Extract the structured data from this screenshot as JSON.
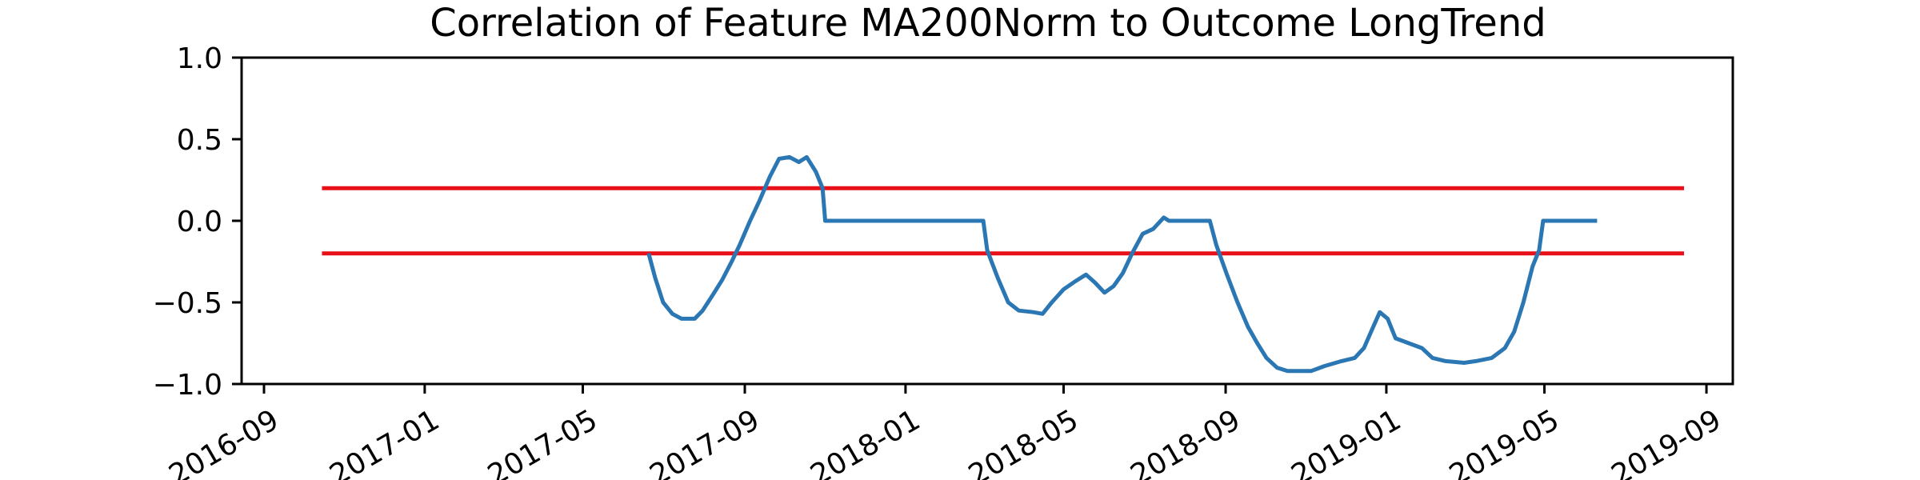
{
  "chart_data": {
    "type": "line",
    "title": "Correlation of Feature MA200Norm to Outcome LongTrend",
    "xlabel": "",
    "ylabel": "",
    "ylim": [
      -1.0,
      1.0
    ],
    "xlim": [
      "2016-08-15",
      "2019-09-21"
    ],
    "grid": false,
    "yticks": [
      {
        "value": 1.0,
        "label": "1.0"
      },
      {
        "value": 0.5,
        "label": "0.5"
      },
      {
        "value": 0.0,
        "label": "0.0"
      },
      {
        "value": -0.5,
        "label": "−0.5"
      },
      {
        "value": -1.0,
        "label": "−1.0"
      }
    ],
    "xticks": [
      {
        "value": "2016-09-01",
        "label": "2016-09"
      },
      {
        "value": "2017-01-01",
        "label": "2017-01"
      },
      {
        "value": "2017-05-01",
        "label": "2017-05"
      },
      {
        "value": "2017-09-01",
        "label": "2017-09"
      },
      {
        "value": "2018-01-01",
        "label": "2018-01"
      },
      {
        "value": "2018-05-01",
        "label": "2018-05"
      },
      {
        "value": "2018-09-01",
        "label": "2018-09"
      },
      {
        "value": "2019-01-01",
        "label": "2019-01"
      },
      {
        "value": "2019-05-01",
        "label": "2019-05"
      },
      {
        "value": "2019-09-01",
        "label": "2019-09"
      }
    ],
    "threshold_lines": [
      {
        "y": 0.2,
        "x_start": "2016-10-15",
        "x_end": "2019-08-15",
        "color": "#e8111a"
      },
      {
        "y": -0.2,
        "x_start": "2016-10-15",
        "x_end": "2019-08-15",
        "color": "#e8111a"
      }
    ],
    "series": [
      {
        "color": "#2a77b4",
        "points": [
          [
            "2017-06-20",
            -0.2
          ],
          [
            "2017-06-25",
            -0.35
          ],
          [
            "2017-07-01",
            -0.5
          ],
          [
            "2017-07-08",
            -0.57
          ],
          [
            "2017-07-15",
            -0.6
          ],
          [
            "2017-07-25",
            -0.6
          ],
          [
            "2017-07-31",
            -0.55
          ],
          [
            "2017-08-08",
            -0.45
          ],
          [
            "2017-08-15",
            -0.36
          ],
          [
            "2017-08-22",
            -0.25
          ],
          [
            "2017-08-28",
            -0.15
          ],
          [
            "2017-09-05",
            0.0
          ],
          [
            "2017-09-12",
            0.12
          ],
          [
            "2017-09-20",
            0.27
          ],
          [
            "2017-09-27",
            0.38
          ],
          [
            "2017-10-05",
            0.39
          ],
          [
            "2017-10-12",
            0.36
          ],
          [
            "2017-10-18",
            0.39
          ],
          [
            "2017-10-25",
            0.3
          ],
          [
            "2017-10-30",
            0.2
          ],
          [
            "2017-11-01",
            0.0
          ],
          [
            "2018-03-01",
            0.0
          ],
          [
            "2018-03-04",
            -0.18
          ],
          [
            "2018-03-12",
            -0.35
          ],
          [
            "2018-03-20",
            -0.5
          ],
          [
            "2018-03-28",
            -0.55
          ],
          [
            "2018-04-08",
            -0.56
          ],
          [
            "2018-04-15",
            -0.57
          ],
          [
            "2018-04-22",
            -0.5
          ],
          [
            "2018-05-01",
            -0.42
          ],
          [
            "2018-05-10",
            -0.37
          ],
          [
            "2018-05-18",
            -0.33
          ],
          [
            "2018-05-25",
            -0.38
          ],
          [
            "2018-06-01",
            -0.44
          ],
          [
            "2018-06-08",
            -0.4
          ],
          [
            "2018-06-15",
            -0.32
          ],
          [
            "2018-06-22",
            -0.2
          ],
          [
            "2018-06-30",
            -0.08
          ],
          [
            "2018-07-08",
            -0.05
          ],
          [
            "2018-07-16",
            0.02
          ],
          [
            "2018-07-20",
            0.0
          ],
          [
            "2018-08-20",
            0.0
          ],
          [
            "2018-08-25",
            -0.15
          ],
          [
            "2018-09-02",
            -0.33
          ],
          [
            "2018-09-10",
            -0.5
          ],
          [
            "2018-09-18",
            -0.65
          ],
          [
            "2018-09-25",
            -0.75
          ],
          [
            "2018-10-02",
            -0.84
          ],
          [
            "2018-10-10",
            -0.9
          ],
          [
            "2018-10-18",
            -0.92
          ],
          [
            "2018-11-05",
            -0.92
          ],
          [
            "2018-11-15",
            -0.89
          ],
          [
            "2018-11-28",
            -0.86
          ],
          [
            "2018-12-08",
            -0.84
          ],
          [
            "2018-12-15",
            -0.78
          ],
          [
            "2018-12-22",
            -0.65
          ],
          [
            "2018-12-27",
            -0.56
          ],
          [
            "2019-01-02",
            -0.6
          ],
          [
            "2019-01-08",
            -0.72
          ],
          [
            "2019-01-18",
            -0.75
          ],
          [
            "2019-01-28",
            -0.78
          ],
          [
            "2019-02-05",
            -0.84
          ],
          [
            "2019-02-15",
            -0.86
          ],
          [
            "2019-03-01",
            -0.87
          ],
          [
            "2019-03-10",
            -0.86
          ],
          [
            "2019-03-22",
            -0.84
          ],
          [
            "2019-04-01",
            -0.78
          ],
          [
            "2019-04-08",
            -0.68
          ],
          [
            "2019-04-15",
            -0.5
          ],
          [
            "2019-04-22",
            -0.28
          ],
          [
            "2019-04-27",
            -0.18
          ],
          [
            "2019-04-30",
            0.0
          ],
          [
            "2019-06-10",
            0.0
          ]
        ]
      }
    ]
  }
}
